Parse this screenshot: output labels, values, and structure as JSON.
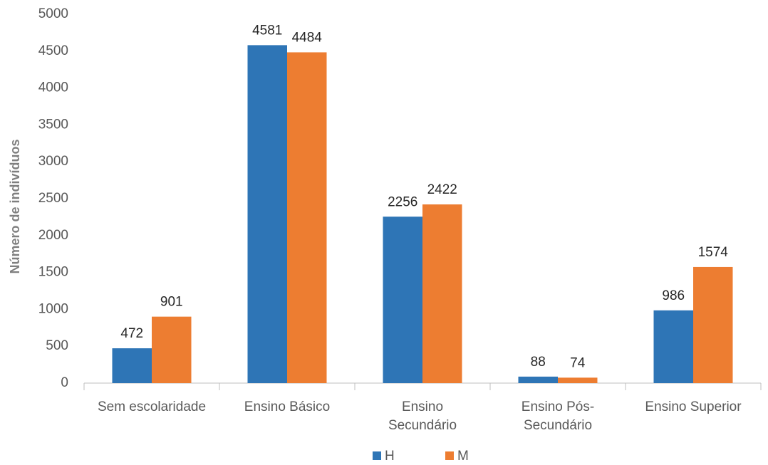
{
  "chart_data": {
    "type": "bar",
    "y_axis_label": "Número de indivíduos",
    "categories": [
      "Sem escolaridade",
      "Ensino Básico",
      "Ensino\nSecundário",
      "Ensino Pós-\nSecundário",
      "Ensino Superior"
    ],
    "series": [
      {
        "name": "H",
        "color": "#2e75b6",
        "values": [
          472,
          4581,
          2256,
          88,
          986
        ]
      },
      {
        "name": "M",
        "color": "#ed7d31",
        "values": [
          901,
          4484,
          2422,
          74,
          1574
        ]
      }
    ],
    "ylim": [
      0,
      5000
    ],
    "yticks": [
      0,
      500,
      1000,
      1500,
      2000,
      2500,
      3000,
      3500,
      4000,
      4500,
      5000
    ],
    "grid": false,
    "legend": "bottom"
  }
}
